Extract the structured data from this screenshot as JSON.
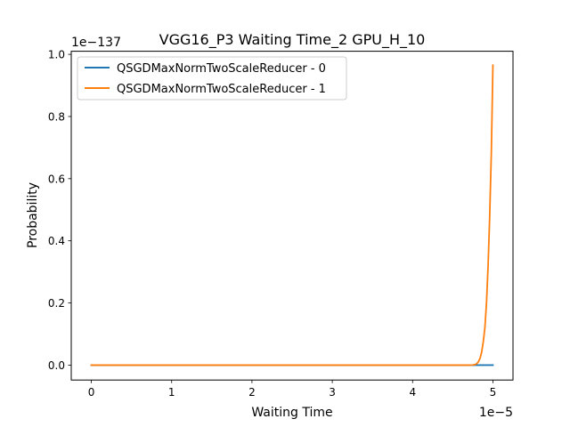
{
  "chart_data": {
    "type": "line",
    "title": "VGG16_P3 Waiting Time_2 GPU_H_10",
    "xlabel": "Waiting Time",
    "ylabel": "Probability",
    "x_offset_text": "1e−5",
    "y_offset_text": "1e−137",
    "x_scale": 1e-05,
    "y_scale": 1e-137,
    "xlim": [
      -0.25,
      5.25
    ],
    "ylim": [
      -0.048,
      1.01
    ],
    "x_ticks": [
      0,
      1,
      2,
      3,
      4,
      5
    ],
    "x_tick_labels": [
      "0",
      "1",
      "2",
      "3",
      "4",
      "5"
    ],
    "y_ticks": [
      0.0,
      0.2,
      0.4,
      0.6,
      0.8,
      1.0
    ],
    "y_tick_labels": [
      "0.0",
      "0.2",
      "0.4",
      "0.6",
      "0.8",
      "1.0"
    ],
    "legend_position": "upper-left",
    "series": [
      {
        "name": "QSGDMaxNormTwoScaleReducer - 0",
        "color": "#1f77b4",
        "x": [
          0,
          1,
          2,
          3,
          4,
          5
        ],
        "y": [
          0,
          0,
          0,
          0,
          0,
          0
        ]
      },
      {
        "name": "QSGDMaxNormTwoScaleReducer - 1",
        "color": "#ff7f0e",
        "x": [
          0,
          1,
          2,
          3,
          4,
          4.7,
          4.75,
          4.78,
          4.8,
          4.82,
          4.84,
          4.86,
          4.88,
          4.9,
          4.92,
          4.94,
          4.96,
          4.98,
          5.0
        ],
        "y": [
          0,
          0,
          0,
          0,
          0,
          0,
          0.0005,
          0.002,
          0.005,
          0.011,
          0.022,
          0.042,
          0.075,
          0.12,
          0.2,
          0.32,
          0.48,
          0.68,
          0.965
        ]
      }
    ]
  }
}
